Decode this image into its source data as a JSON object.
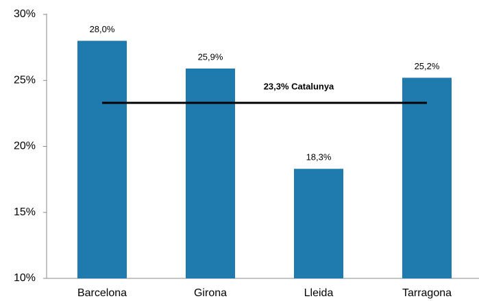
{
  "chart_data": {
    "type": "bar",
    "categories": [
      "Barcelona",
      "Girona",
      "Lleida",
      "Tarragona"
    ],
    "values": [
      28.0,
      25.9,
      18.3,
      25.2
    ],
    "value_labels": [
      "28,0%",
      "25,9%",
      "18,3%",
      "25,2%"
    ],
    "color": "#1f7aad",
    "ylim": [
      10,
      30
    ],
    "yticks": [
      {
        "value": 10,
        "label": "10%"
      },
      {
        "value": 15,
        "label": "15%"
      },
      {
        "value": 20,
        "label": "20%"
      },
      {
        "value": 25,
        "label": "25%"
      },
      {
        "value": 30,
        "label": "30%"
      }
    ],
    "grid": false,
    "reference_line": {
      "value": 23.3,
      "label": "23,3% Catalunya",
      "color": "#000000"
    }
  }
}
